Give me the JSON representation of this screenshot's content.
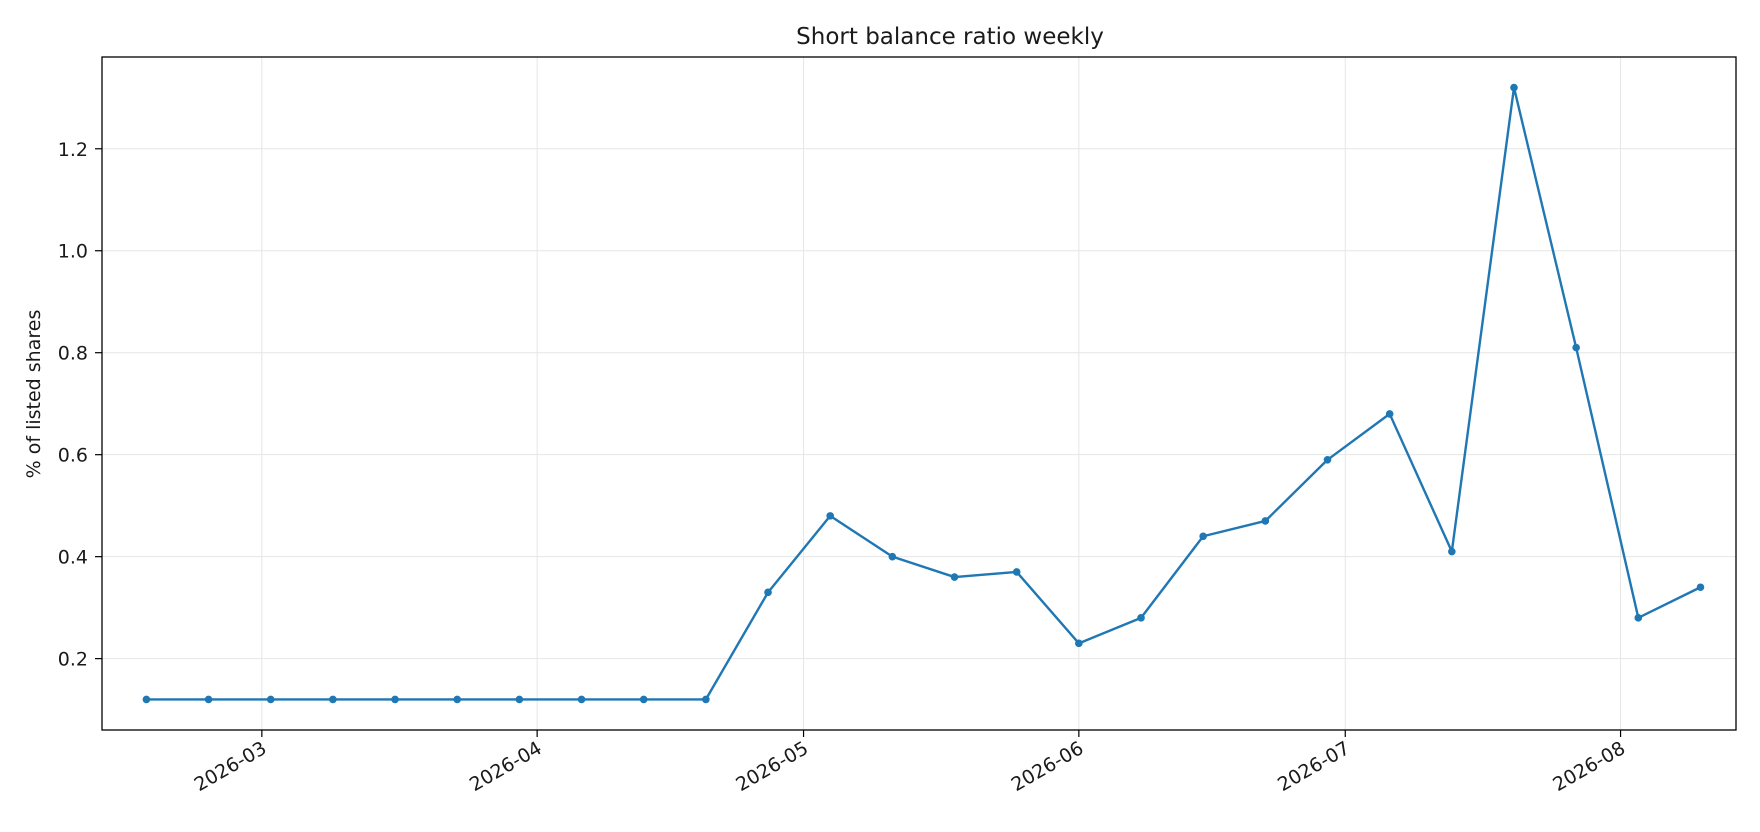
{
  "chart_data": {
    "type": "line",
    "title": "Short balance ratio weekly",
    "xlabel": "",
    "ylabel": "% of listed shares",
    "x_type": "date",
    "x_tick_labels": [
      "2026-03",
      "2026-04",
      "2026-05",
      "2026-06",
      "2026-07",
      "2026-08"
    ],
    "x_ticks": [
      "2026-03-01",
      "2026-04-01",
      "2026-05-01",
      "2026-06-01",
      "2026-07-01",
      "2026-08-01"
    ],
    "x_range": [
      "2026-02-11",
      "2026-08-14"
    ],
    "y_ticks": [
      0.2,
      0.4,
      0.6,
      0.8,
      1.0,
      1.2
    ],
    "y_tick_labels": [
      "0.2",
      "0.4",
      "0.6",
      "0.8",
      "1.0",
      "1.2"
    ],
    "ylim": [
      0.06,
      1.38
    ],
    "grid": true,
    "legend": "none",
    "series": [
      {
        "color": "#1f77b4",
        "marker": "circle",
        "points": [
          {
            "x": "2026-02-16",
            "y": 0.12
          },
          {
            "x": "2026-02-23",
            "y": 0.12
          },
          {
            "x": "2026-03-02",
            "y": 0.12
          },
          {
            "x": "2026-03-09",
            "y": 0.12
          },
          {
            "x": "2026-03-16",
            "y": 0.12
          },
          {
            "x": "2026-03-23",
            "y": 0.12
          },
          {
            "x": "2026-03-30",
            "y": 0.12
          },
          {
            "x": "2026-04-06",
            "y": 0.12
          },
          {
            "x": "2026-04-13",
            "y": 0.12
          },
          {
            "x": "2026-04-20",
            "y": 0.12
          },
          {
            "x": "2026-04-27",
            "y": 0.33
          },
          {
            "x": "2026-05-04",
            "y": 0.48
          },
          {
            "x": "2026-05-11",
            "y": 0.4
          },
          {
            "x": "2026-05-18",
            "y": 0.36
          },
          {
            "x": "2026-05-25",
            "y": 0.37
          },
          {
            "x": "2026-06-01",
            "y": 0.23
          },
          {
            "x": "2026-06-08",
            "y": 0.28
          },
          {
            "x": "2026-06-15",
            "y": 0.44
          },
          {
            "x": "2026-06-22",
            "y": 0.47
          },
          {
            "x": "2026-06-29",
            "y": 0.59
          },
          {
            "x": "2026-07-06",
            "y": 0.68
          },
          {
            "x": "2026-07-13",
            "y": 0.41
          },
          {
            "x": "2026-07-20",
            "y": 1.32
          },
          {
            "x": "2026-07-27",
            "y": 0.81
          },
          {
            "x": "2026-08-03",
            "y": 0.28
          },
          {
            "x": "2026-08-10",
            "y": 0.34
          }
        ]
      }
    ]
  }
}
